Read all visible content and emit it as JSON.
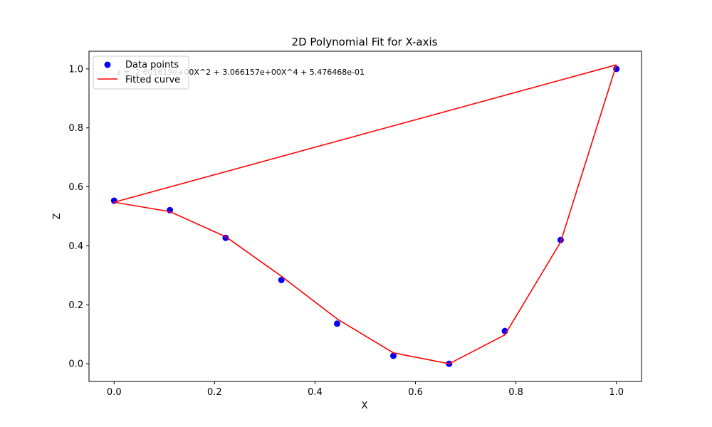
{
  "chart_data": {
    "type": "line",
    "title": "2D Polynomial Fit for X-axis",
    "xlabel": "X",
    "ylabel": "Z",
    "xlim": [
      -0.05,
      1.05
    ],
    "ylim": [
      -0.06,
      1.06
    ],
    "xticks": [
      0.0,
      0.2,
      0.4,
      0.6,
      0.8,
      1.0
    ],
    "yticks": [
      0.0,
      0.2,
      0.4,
      0.6,
      0.8,
      1.0
    ],
    "xtick_labels": [
      "0.0",
      "0.2",
      "0.4",
      "0.6",
      "0.8",
      "1.0"
    ],
    "ytick_labels": [
      "0.0",
      "0.2",
      "0.4",
      "0.6",
      "0.8",
      "1.0"
    ],
    "grid": false,
    "legend_position": "top-left",
    "annotation": "z = -2.601619e+00X^2 + 3.066157e+00X^4 + 5.476468e-01",
    "series": [
      {
        "name": "Data points",
        "kind": "scatter",
        "color": "#0000ff",
        "x": [
          1.0,
          0.0,
          0.111,
          0.222,
          0.333,
          0.444,
          0.556,
          0.667,
          0.778,
          0.889
        ],
        "y": [
          1.0,
          0.553,
          0.521,
          0.427,
          0.284,
          0.136,
          0.027,
          0.0,
          0.111,
          0.42
        ]
      },
      {
        "name": "Fitted curve",
        "kind": "line",
        "color": "#ff0000",
        "x": [
          1.0,
          0.0,
          0.111,
          0.222,
          0.333,
          0.444,
          0.556,
          0.667,
          0.778,
          0.889,
          1.0
        ],
        "y": [
          1.014,
          0.548,
          0.516,
          0.431,
          0.297,
          0.152,
          0.037,
          0.0,
          0.098,
          0.413,
          1.014
        ]
      }
    ]
  }
}
